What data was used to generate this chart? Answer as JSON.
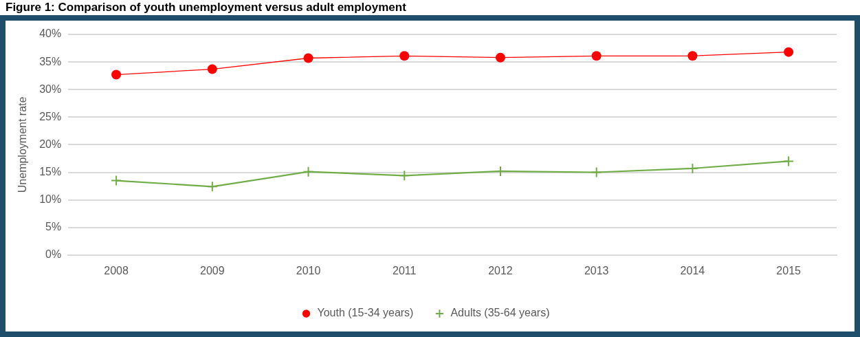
{
  "chart_data": {
    "type": "line",
    "title": "Figure 1: Comparison of youth unemployment versus adult employment",
    "ylabel": "Unemployment rate",
    "categories": [
      "2008",
      "2009",
      "2010",
      "2011",
      "2012",
      "2013",
      "2014",
      "2015"
    ],
    "series": [
      {
        "name": "Youth (15-34 years)",
        "color": "#ff0000",
        "marker": "circle",
        "values": [
          32.7,
          33.7,
          35.7,
          36.1,
          35.8,
          36.1,
          36.1,
          36.8
        ]
      },
      {
        "name": "Adults (35-64 years)",
        "color": "#70ad47",
        "marker": "cross",
        "values": [
          13.5,
          12.4,
          15.1,
          14.4,
          15.2,
          15.0,
          15.7,
          17.0
        ]
      }
    ],
    "ylim": [
      0,
      40
    ],
    "yticks": [
      {
        "value": 0,
        "label": "0%"
      },
      {
        "value": 5,
        "label": "5%"
      },
      {
        "value": 10,
        "label": "10%"
      },
      {
        "value": 15,
        "label": "15%"
      },
      {
        "value": 20,
        "label": "20%"
      },
      {
        "value": 25,
        "label": "25%"
      },
      {
        "value": 30,
        "label": "30%"
      },
      {
        "value": 35,
        "label": "35%"
      },
      {
        "value": 40,
        "label": "40%"
      }
    ],
    "grid": "y",
    "legend": "bottom"
  }
}
